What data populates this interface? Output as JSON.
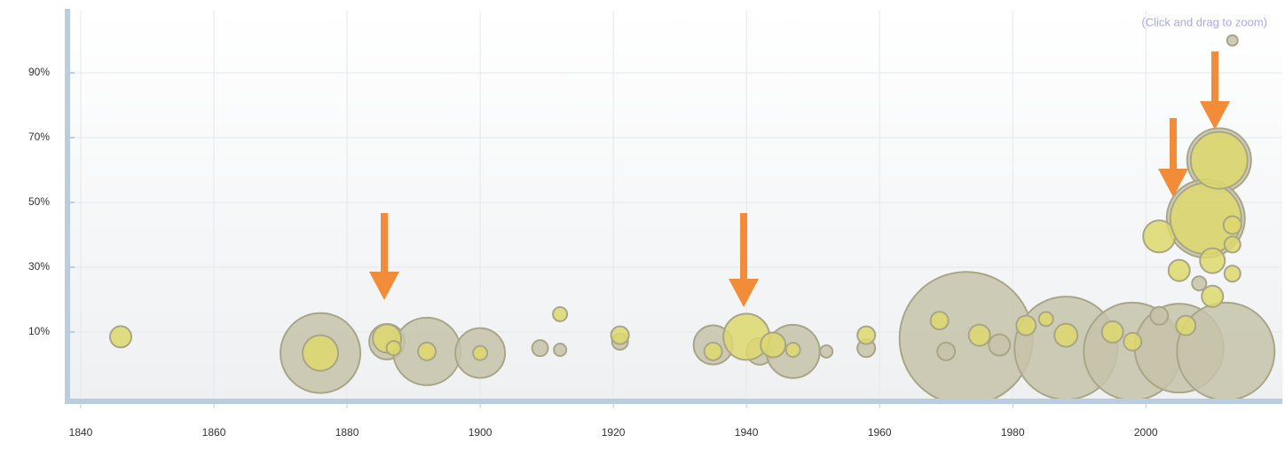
{
  "chart_data": {
    "type": "bubble",
    "annotation": "(Click and drag to zoom)",
    "xlim": [
      1838,
      2020.5
    ],
    "xticks": [
      1840,
      1860,
      1880,
      1900,
      1920,
      1940,
      1960,
      1980,
      2000
    ],
    "ylim": [
      -11.4,
      109.2
    ],
    "yticks": [
      {
        "value": 10,
        "label": "10%"
      },
      {
        "value": 30,
        "label": "30%"
      },
      {
        "value": 50,
        "label": "50%"
      },
      {
        "value": 70,
        "label": "70%"
      },
      {
        "value": 90,
        "label": "90%"
      }
    ],
    "grid": true,
    "series": [
      {
        "color": "#c6c3a9",
        "x": [
          1876,
          1886,
          1892,
          1900,
          1909,
          1912,
          1921,
          1935,
          1942,
          1947,
          1952,
          1958,
          1973,
          1988,
          1998,
          2005,
          2012,
          2013,
          1970,
          1978,
          2002,
          2008,
          2011,
          2009
        ],
        "values": [
          3.5,
          7,
          4,
          3.5,
          5,
          4.5,
          7,
          6,
          4,
          4,
          4,
          5,
          8,
          5,
          4,
          5,
          4,
          100,
          4,
          6,
          15,
          25,
          63,
          45
        ],
        "sizes": [
          45,
          20,
          38,
          28,
          9,
          7,
          9,
          22,
          15,
          30,
          7,
          10,
          75,
          58,
          55,
          50,
          55,
          6,
          10,
          12,
          10,
          8,
          36,
          44
        ]
      },
      {
        "color": "#ddd86c",
        "x": [
          1846,
          1876,
          1886,
          1887,
          1892,
          1900,
          1912,
          1921,
          1935,
          1940,
          1944,
          1947,
          1958,
          1969,
          1975,
          1982,
          1988,
          1995,
          2002,
          2005,
          2009,
          2011,
          2010,
          2013,
          2013,
          2010,
          2013,
          1985,
          1998,
          2006
        ],
        "values": [
          8.5,
          3.5,
          8,
          5,
          4,
          3.5,
          15.5,
          9,
          4,
          8.5,
          6,
          4.5,
          9,
          13.5,
          9,
          12,
          9,
          10,
          39.5,
          29,
          45,
          63,
          32,
          43,
          37,
          21,
          28,
          14,
          7,
          12
        ],
        "sizes": [
          12,
          20,
          16,
          8,
          10,
          8,
          8,
          10,
          10,
          26,
          14,
          8,
          10,
          10,
          12,
          11,
          13,
          12,
          18,
          12,
          40,
          32,
          14,
          10,
          9,
          12,
          9,
          8,
          10,
          11
        ]
      }
    ]
  }
}
